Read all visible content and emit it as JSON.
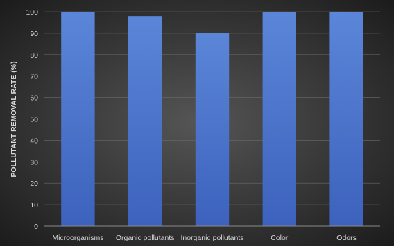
{
  "colors": {
    "bar_top": "#5b86d8",
    "bar_bottom": "#3c62bd",
    "bg_center": "#555555",
    "bg_edge": "#1c1c1c",
    "text": "#d9d9d9",
    "grid": "#6a6a6a"
  },
  "chart_data": {
    "type": "bar",
    "title": "",
    "xlabel": "",
    "ylabel": "POLLUTANT REMOVAL RATE (%)",
    "categories": [
      "Microorganisms",
      "Organic pollutants",
      "Inorganic pollutants",
      "Color",
      "Odors"
    ],
    "values": [
      100,
      98,
      90,
      100,
      100
    ],
    "ylim": [
      0,
      100
    ],
    "yticks": [
      "0",
      "10",
      "20",
      "30",
      "40",
      "50",
      "60",
      "70",
      "80",
      "90",
      "100"
    ],
    "grid": true,
    "legend": "none"
  }
}
